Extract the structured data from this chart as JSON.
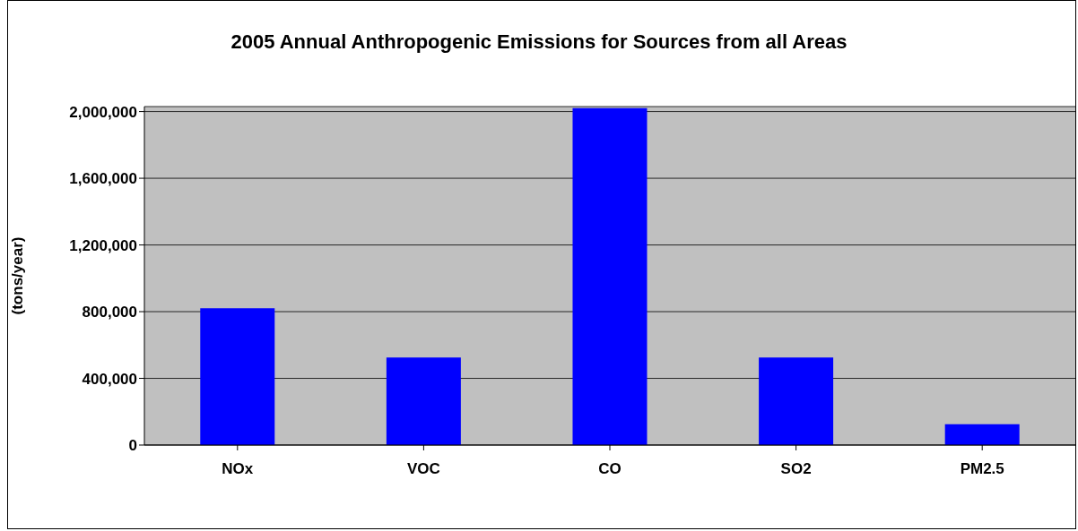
{
  "chart_data": {
    "type": "bar",
    "title": "2005 Annual Anthropogenic Emissions for Sources from all Areas",
    "ylabel": "(tons/year)",
    "categories": [
      "NOx",
      "VOC",
      "CO",
      "SO2",
      "PM2.5"
    ],
    "values": [
      820000,
      525000,
      2020000,
      525000,
      125000
    ],
    "color": "#0000ff",
    "ylim": [
      0,
      2030000
    ],
    "yticks": [
      0,
      {
        "value": 400000,
        "label": "400,000"
      },
      {
        "value": 800000,
        "label": "800,000"
      },
      {
        "value": 1200000,
        "label": "1,200,000"
      },
      {
        "value": 1600000,
        "label": "1,600,000"
      },
      {
        "value": 2000000,
        "label": "2,000,000"
      }
    ],
    "grid": "y"
  }
}
